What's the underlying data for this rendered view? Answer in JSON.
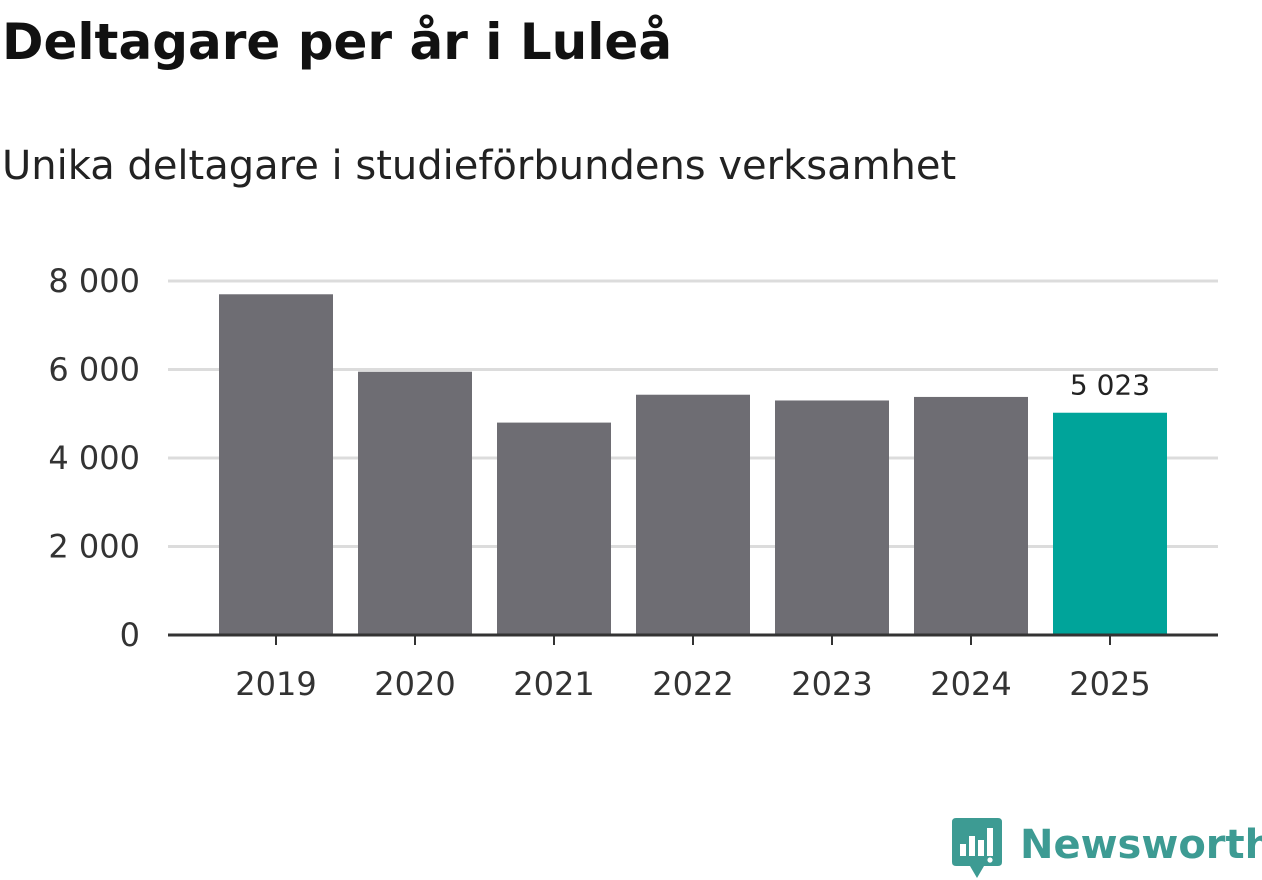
{
  "colors": {
    "bar_default": "#6e6d73",
    "bar_highlight": "#00a49a",
    "grid": "#dcdcdc",
    "axis": "#333333",
    "brand": "#3d9b93"
  },
  "brand": {
    "name": "Newsworthy",
    "icon": "newsworthy-logo-icon"
  },
  "chart_data": {
    "type": "bar",
    "title": "Deltagare per år i Luleå",
    "subtitle": "Unika deltagare i studieförbundens verksamhet",
    "xlabel": "",
    "ylabel": "",
    "categories": [
      "2019",
      "2020",
      "2021",
      "2022",
      "2023",
      "2024",
      "2025"
    ],
    "values": [
      7700,
      5950,
      4800,
      5430,
      5300,
      5380,
      5023
    ],
    "highlight_index": 6,
    "data_labels": [
      {
        "index": 6,
        "text": "5 023"
      }
    ],
    "ylim": [
      0,
      8000
    ],
    "yticks": [
      0,
      2000,
      4000,
      6000,
      8000
    ],
    "ytick_labels": [
      "0",
      "2 000",
      "4 000",
      "6 000",
      "8 000"
    ],
    "grid": true,
    "legend": "none"
  }
}
